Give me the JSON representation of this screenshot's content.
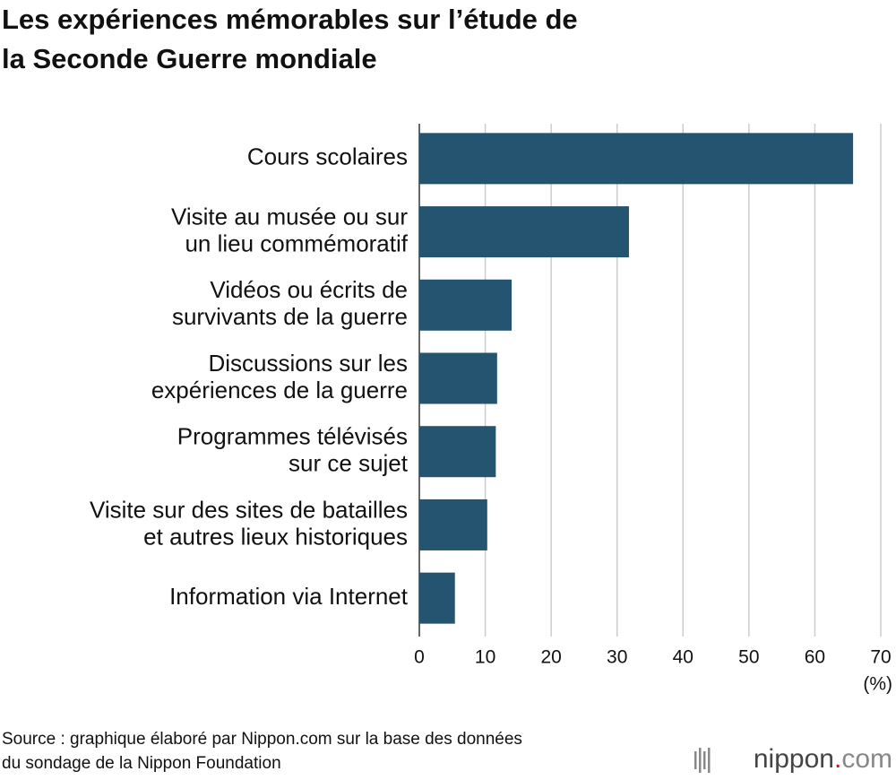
{
  "chart_data": {
    "type": "bar",
    "orientation": "horizontal",
    "title": [
      "Les expériences mémorables sur l’étude de",
      "la Seconde Guerre mondiale"
    ],
    "categories": [
      [
        "Cours scolaires"
      ],
      [
        "Visite au musée ou sur",
        "un lieu commémoratif"
      ],
      [
        "Vidéos ou écrits de",
        "survivants de la guerre"
      ],
      [
        "Discussions sur les",
        "expériences de la guerre"
      ],
      [
        "Programmes télévisés",
        "sur ce sujet"
      ],
      [
        "Visite sur des sites de batailles",
        "et autres lieux historiques"
      ],
      [
        "Information via Internet"
      ]
    ],
    "values": [
      65.8,
      31.8,
      14.0,
      11.8,
      11.6,
      10.3,
      5.4
    ],
    "color": "#24546f",
    "xlim": [
      0,
      70
    ],
    "xticks": [
      0,
      10,
      20,
      30,
      40,
      50,
      60,
      70
    ],
    "x_label": "(%)",
    "grid": true,
    "source": [
      "Source : graphique élaboré par Nippon.com sur la base des données",
      "du sondage de la Nippon Foundation"
    ],
    "logo": [
      "nippon",
      ".",
      "com"
    ]
  }
}
